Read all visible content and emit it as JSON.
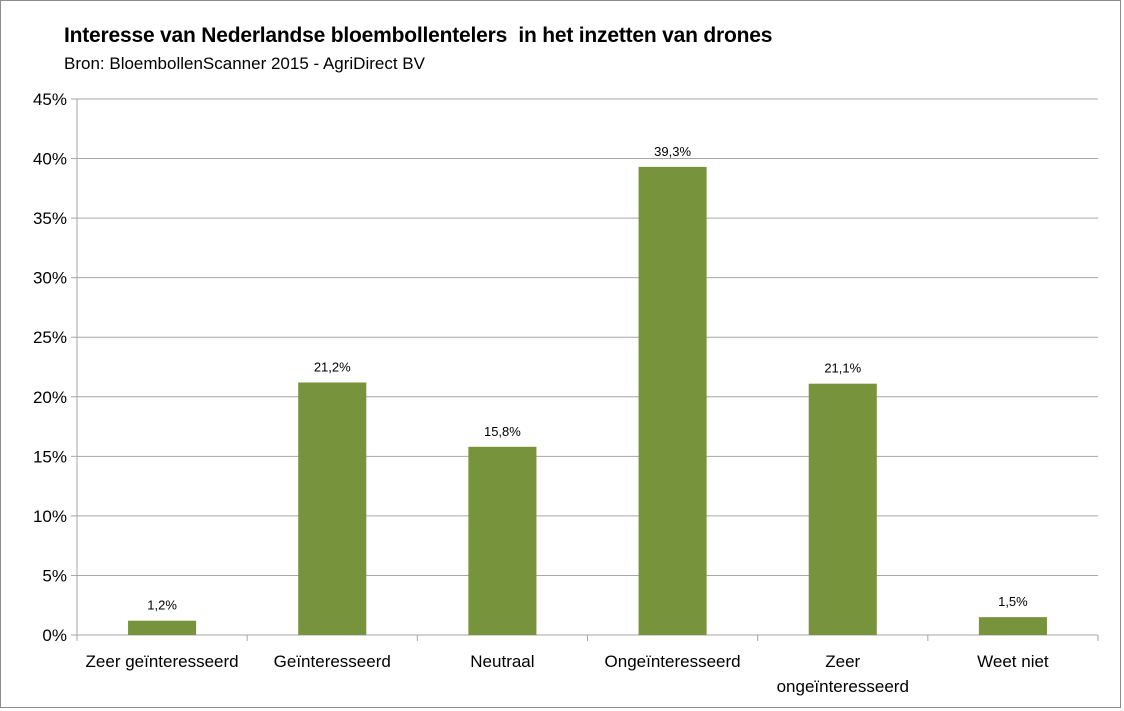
{
  "chart_data": {
    "type": "bar",
    "title": "Interesse van Nederlandse bloembollentelers  in het inzetten van drones",
    "subtitle": "Bron: BloembollenScanner 2015 - AgriDirect BV",
    "categories": [
      [
        "Zeer geïnteresseerd"
      ],
      [
        "Geïnteresseerd"
      ],
      [
        "Neutraal"
      ],
      [
        "Ongeïnteresseerd"
      ],
      [
        "Zeer",
        "ongeïnteresseerd"
      ],
      [
        "Weet niet"
      ]
    ],
    "values": [
      1.2,
      21.2,
      15.8,
      39.3,
      21.1,
      1.5
    ],
    "data_labels": [
      "1,2%",
      "21,2%",
      "15,8%",
      "39,3%",
      "21,1%",
      "1,5%"
    ],
    "y_ticks": [
      "0%",
      "5%",
      "10%",
      "15%",
      "20%",
      "25%",
      "30%",
      "35%",
      "40%",
      "45%"
    ],
    "ylim": [
      0,
      45
    ],
    "grid": true,
    "bar_color": "#77933c",
    "grid_color": "#a6a6a6",
    "legend": "none"
  }
}
